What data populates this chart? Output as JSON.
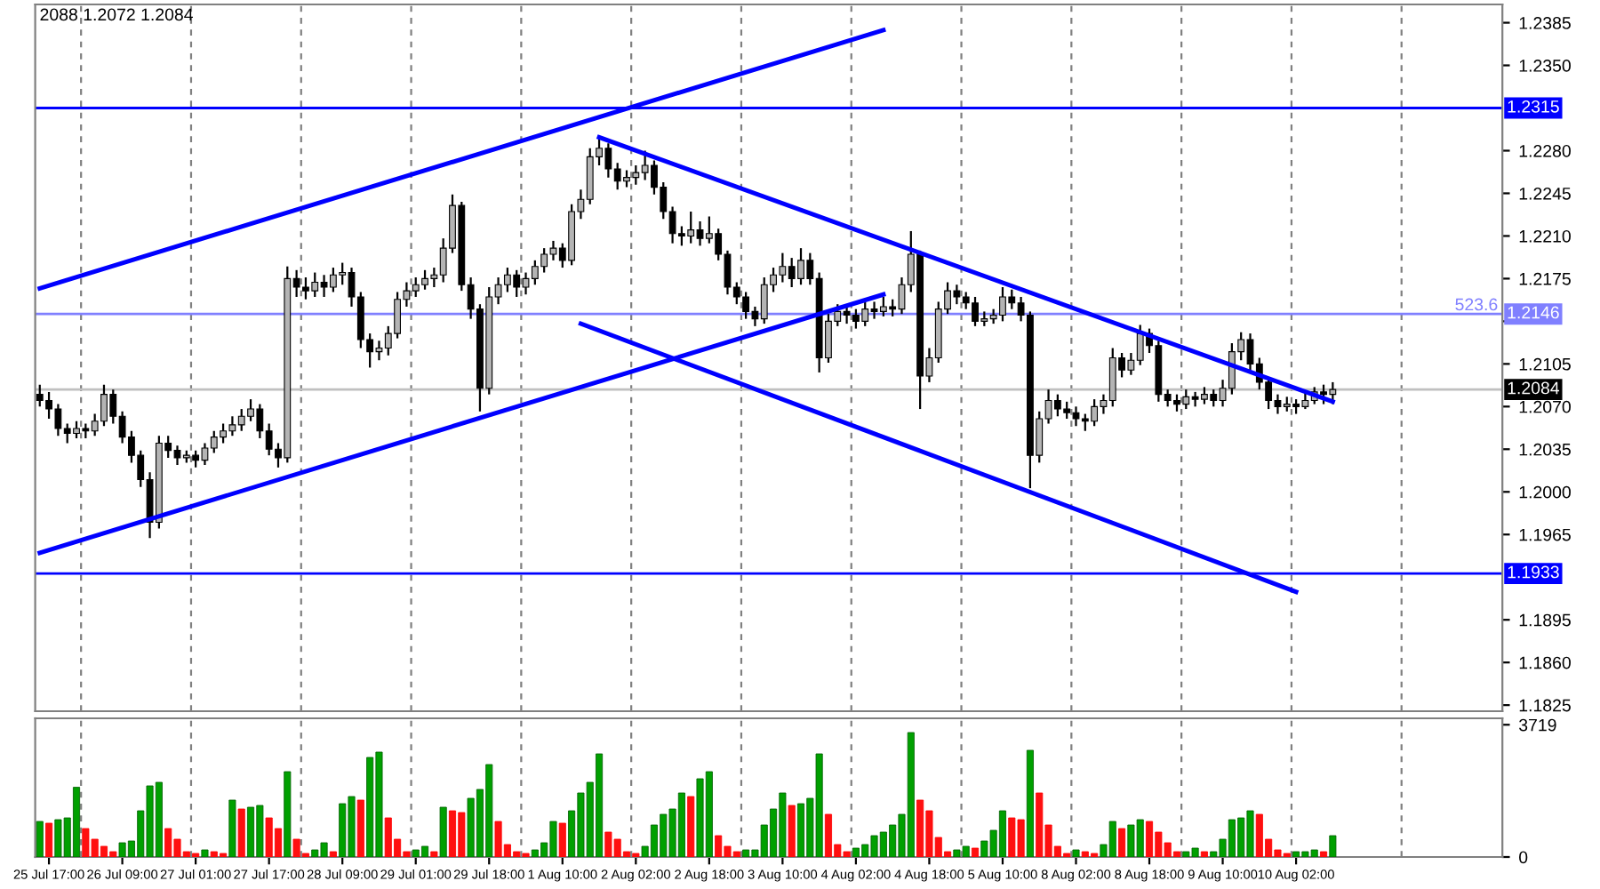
{
  "chart_data": [
    {
      "type": "candlestick",
      "tick_labels": "y",
      "categories": [
        null,
        null,
        null,
        null,
        null,
        null,
        null,
        null,
        null,
        null,
        null,
        null,
        null,
        null,
        null,
        null,
        null,
        null,
        null,
        null,
        null,
        null,
        null,
        null,
        null,
        null,
        null,
        null,
        null,
        null,
        null,
        null,
        null,
        null,
        null,
        null,
        null,
        null,
        null,
        null,
        null,
        null,
        null,
        null,
        null,
        null,
        null,
        null,
        null,
        null,
        null,
        null,
        null,
        null,
        null,
        null,
        null,
        null,
        null,
        null,
        null,
        null,
        null,
        null,
        null,
        null,
        null,
        null,
        null,
        null,
        null,
        null,
        null,
        null,
        null,
        null,
        null,
        null,
        null,
        null,
        null,
        null,
        null,
        null,
        null,
        null,
        null,
        null,
        null,
        null,
        null,
        null,
        null,
        null,
        null,
        null,
        null,
        null,
        null,
        null,
        null,
        null,
        null,
        null,
        null,
        null,
        null,
        null,
        null,
        null,
        null,
        null,
        null,
        null,
        null,
        null,
        null,
        null,
        null,
        null,
        null,
        null,
        null,
        null,
        null,
        null,
        null,
        null,
        null,
        null,
        null,
        null,
        null,
        null,
        null,
        null,
        null,
        null,
        null,
        null,
        null,
        null,
        null,
        null,
        null,
        null,
        null,
        null,
        null,
        null,
        null,
        null,
        null,
        null,
        null,
        null,
        null,
        null,
        null,
        null
      ],
      "ohlc": [
        [
          1.208,
          1.2088,
          1.207,
          1.2075
        ],
        [
          1.2075,
          1.2082,
          1.206,
          1.2068
        ],
        [
          1.2068,
          1.2072,
          1.2046,
          1.2052
        ],
        [
          1.2052,
          1.2056,
          1.204,
          1.2048
        ],
        [
          1.2048,
          1.2058,
          1.2044,
          1.2052
        ],
        [
          1.2052,
          1.2056,
          1.2044,
          1.205
        ],
        [
          1.205,
          1.2064,
          1.2046,
          1.2058
        ],
        [
          1.2058,
          1.2088,
          1.2054,
          1.208
        ],
        [
          1.208,
          1.2084,
          1.2056,
          1.2062
        ],
        [
          1.2062,
          1.2066,
          1.204,
          1.2045
        ],
        [
          1.2045,
          1.205,
          1.2024,
          1.203
        ],
        [
          1.203,
          1.2034,
          1.2004,
          1.201
        ],
        [
          1.201,
          1.2016,
          1.1962,
          1.1975
        ],
        [
          1.1975,
          1.2046,
          1.197,
          1.204
        ],
        [
          1.204,
          1.2046,
          1.2028,
          1.2034
        ],
        [
          1.2034,
          1.2038,
          1.2022,
          1.2028
        ],
        [
          1.2028,
          1.2034,
          1.2024,
          1.203
        ],
        [
          1.203,
          1.2034,
          1.202,
          1.2026
        ],
        [
          1.2026,
          1.204,
          1.2022,
          1.2036
        ],
        [
          1.2036,
          1.205,
          1.2032,
          1.2045
        ],
        [
          1.2045,
          1.2056,
          1.204,
          1.205
        ],
        [
          1.205,
          1.2062,
          1.2046,
          1.2055
        ],
        [
          1.2055,
          1.2068,
          1.205,
          1.2062
        ],
        [
          1.2062,
          1.2076,
          1.2058,
          1.2068
        ],
        [
          1.2068,
          1.2072,
          1.2044,
          1.205
        ],
        [
          1.205,
          1.2056,
          1.203,
          1.2035
        ],
        [
          1.2035,
          1.204,
          1.202,
          1.2028
        ],
        [
          1.2028,
          1.2185,
          1.2024,
          1.2175
        ],
        [
          1.2175,
          1.2182,
          1.216,
          1.2168
        ],
        [
          1.2168,
          1.2176,
          1.2158,
          1.2165
        ],
        [
          1.2165,
          1.218,
          1.216,
          1.2172
        ],
        [
          1.2172,
          1.2178,
          1.216,
          1.2168
        ],
        [
          1.2168,
          1.2184,
          1.2164,
          1.2178
        ],
        [
          1.2178,
          1.2188,
          1.217,
          1.218
        ],
        [
          1.218,
          1.2184,
          1.2152,
          1.216
        ],
        [
          1.216,
          1.2164,
          1.2118,
          1.2125
        ],
        [
          1.2125,
          1.213,
          1.2102,
          1.2115
        ],
        [
          1.2115,
          1.2124,
          1.2108,
          1.2118
        ],
        [
          1.2118,
          1.2136,
          1.2112,
          1.213
        ],
        [
          1.213,
          1.2164,
          1.2126,
          1.2158
        ],
        [
          1.2158,
          1.2172,
          1.2152,
          1.2165
        ],
        [
          1.2165,
          1.2176,
          1.216,
          1.217
        ],
        [
          1.217,
          1.2182,
          1.2166,
          1.2175
        ],
        [
          1.2175,
          1.2184,
          1.2168,
          1.2178
        ],
        [
          1.2178,
          1.2208,
          1.2172,
          1.22
        ],
        [
          1.22,
          1.2244,
          1.2196,
          1.2235
        ],
        [
          1.2235,
          1.2238,
          1.2165,
          1.217
        ],
        [
          1.217,
          1.2176,
          1.2142,
          1.215
        ],
        [
          1.215,
          1.2154,
          1.2066,
          1.2085
        ],
        [
          1.2085,
          1.2168,
          1.208,
          1.216
        ],
        [
          1.216,
          1.2176,
          1.2154,
          1.217
        ],
        [
          1.217,
          1.2184,
          1.2164,
          1.2178
        ],
        [
          1.2178,
          1.2182,
          1.216,
          1.2168
        ],
        [
          1.2168,
          1.218,
          1.2162,
          1.2175
        ],
        [
          1.2175,
          1.219,
          1.217,
          1.2185
        ],
        [
          1.2185,
          1.22,
          1.218,
          1.2195
        ],
        [
          1.2195,
          1.2206,
          1.219,
          1.22
        ],
        [
          1.22,
          1.2204,
          1.2184,
          1.219
        ],
        [
          1.219,
          1.2236,
          1.2186,
          1.223
        ],
        [
          1.223,
          1.2248,
          1.2224,
          1.224
        ],
        [
          1.224,
          1.2282,
          1.2236,
          1.2275
        ],
        [
          1.2275,
          1.2292,
          1.2268,
          1.2282
        ],
        [
          1.2282,
          1.2286,
          1.2258,
          1.2265
        ],
        [
          1.2265,
          1.227,
          1.2248,
          1.2255
        ],
        [
          1.2255,
          1.2264,
          1.225,
          1.2258
        ],
        [
          1.2258,
          1.2268,
          1.2252,
          1.2262
        ],
        [
          1.2262,
          1.228,
          1.2256,
          1.2268
        ],
        [
          1.2268,
          1.2272,
          1.2244,
          1.225
        ],
        [
          1.225,
          1.2254,
          1.2224,
          1.223
        ],
        [
          1.223,
          1.2234,
          1.2204,
          1.2212
        ],
        [
          1.2212,
          1.2218,
          1.2202,
          1.221
        ],
        [
          1.221,
          1.223,
          1.2204,
          1.2215
        ],
        [
          1.2215,
          1.2222,
          1.2202,
          1.2208
        ],
        [
          1.2208,
          1.2226,
          1.2204,
          1.2212
        ],
        [
          1.2212,
          1.2216,
          1.219,
          1.2195
        ],
        [
          1.2195,
          1.2198,
          1.2162,
          1.2168
        ],
        [
          1.2168,
          1.2172,
          1.2154,
          1.216
        ],
        [
          1.216,
          1.2164,
          1.2142,
          1.2148
        ],
        [
          1.2148,
          1.2152,
          1.2136,
          1.2142
        ],
        [
          1.2142,
          1.2176,
          1.2138,
          1.217
        ],
        [
          1.217,
          1.2184,
          1.2164,
          1.2178
        ],
        [
          1.2178,
          1.2196,
          1.2172,
          1.2185
        ],
        [
          1.2185,
          1.2192,
          1.2168,
          1.2175
        ],
        [
          1.2175,
          1.22,
          1.217,
          1.219
        ],
        [
          1.219,
          1.2196,
          1.217,
          1.2175
        ],
        [
          1.2175,
          1.218,
          1.2098,
          1.211
        ],
        [
          1.211,
          1.2146,
          1.2106,
          1.214
        ],
        [
          1.214,
          1.2154,
          1.2136,
          1.2148
        ],
        [
          1.2148,
          1.2152,
          1.2138,
          1.2145
        ],
        [
          1.2145,
          1.215,
          1.2134,
          1.214
        ],
        [
          1.214,
          1.2156,
          1.2136,
          1.215
        ],
        [
          1.215,
          1.2156,
          1.2142,
          1.2148
        ],
        [
          1.2148,
          1.216,
          1.2144,
          1.2152
        ],
        [
          1.2152,
          1.2158,
          1.2144,
          1.215
        ],
        [
          1.215,
          1.2176,
          1.2146,
          1.217
        ],
        [
          1.217,
          1.2214,
          1.2164,
          1.2195
        ],
        [
          1.2195,
          1.2198,
          1.2068,
          1.2095
        ],
        [
          1.2095,
          1.2118,
          1.209,
          1.211
        ],
        [
          1.211,
          1.2156,
          1.2106,
          1.215
        ],
        [
          1.215,
          1.2172,
          1.2146,
          1.2165
        ],
        [
          1.2165,
          1.217,
          1.2154,
          1.216
        ],
        [
          1.216,
          1.2164,
          1.215,
          1.2155
        ],
        [
          1.2155,
          1.216,
          1.2136,
          1.214
        ],
        [
          1.214,
          1.2148,
          1.2136,
          1.2142
        ],
        [
          1.2142,
          1.215,
          1.2138,
          1.2145
        ],
        [
          1.2145,
          1.2168,
          1.214,
          1.216
        ],
        [
          1.216,
          1.2166,
          1.215,
          1.2155
        ],
        [
          1.2155,
          1.216,
          1.214,
          1.2145
        ],
        [
          1.2145,
          1.2148,
          1.2003,
          1.203
        ],
        [
          1.203,
          1.2066,
          1.2024,
          1.206
        ],
        [
          1.206,
          1.2084,
          1.2056,
          1.2075
        ],
        [
          1.2075,
          1.208,
          1.2062,
          1.2068
        ],
        [
          1.2068,
          1.2074,
          1.206,
          1.2065
        ],
        [
          1.2065,
          1.207,
          1.2054,
          1.206
        ],
        [
          1.206,
          1.2064,
          1.205,
          1.2058
        ],
        [
          1.2058,
          1.2076,
          1.2054,
          1.207
        ],
        [
          1.207,
          1.208,
          1.2064,
          1.2075
        ],
        [
          1.2075,
          1.2118,
          1.207,
          1.211
        ],
        [
          1.211,
          1.2114,
          1.2094,
          1.21
        ],
        [
          1.21,
          1.2114,
          1.2096,
          1.2108
        ],
        [
          1.2108,
          1.2137,
          1.2104,
          1.213
        ],
        [
          1.213,
          1.2134,
          1.2114,
          1.212
        ],
        [
          1.212,
          1.2124,
          1.2074,
          1.208
        ],
        [
          1.208,
          1.2084,
          1.207,
          1.2075
        ],
        [
          1.2075,
          1.208,
          1.2066,
          1.2072
        ],
        [
          1.2072,
          1.2084,
          1.2068,
          1.2078
        ],
        [
          1.2078,
          1.2082,
          1.207,
          1.2076
        ],
        [
          1.2076,
          1.2086,
          1.2072,
          1.208
        ],
        [
          1.208,
          1.2084,
          1.207,
          1.2075
        ],
        [
          1.2075,
          1.2092,
          1.207,
          1.2085
        ],
        [
          1.2085,
          1.2122,
          1.208,
          1.2115
        ],
        [
          1.2115,
          1.2131,
          1.2108,
          1.2125
        ],
        [
          1.2125,
          1.213,
          1.21,
          1.2105
        ],
        [
          1.2105,
          1.211,
          1.2084,
          1.209
        ],
        [
          1.209,
          1.2094,
          1.2068,
          1.2075
        ],
        [
          1.2075,
          1.208,
          1.2064,
          1.207
        ],
        [
          1.207,
          1.2078,
          1.2066,
          1.2072
        ],
        [
          1.2072,
          1.2076,
          1.2064,
          1.207
        ],
        [
          1.207,
          1.2082,
          1.2068,
          1.2075
        ],
        [
          1.2075,
          1.2086,
          1.2072,
          1.2082
        ],
        [
          1.2082,
          1.2088,
          1.2072,
          1.208
        ],
        [
          1.208,
          1.209,
          1.2072,
          1.2084
        ],
        null,
        null,
        null,
        null,
        null,
        null,
        null,
        null,
        null,
        null,
        null,
        null,
        null,
        null,
        null,
        null,
        null,
        null
      ],
      "series": [
        {
          "type": "line",
          "color": "#0000ff",
          "values": [
            1.2167,
            null,
            null,
            null,
            null,
            null,
            null,
            null,
            null,
            null,
            null,
            null,
            null,
            null,
            null,
            null,
            null,
            null,
            null,
            null,
            null,
            null,
            null,
            null,
            null,
            null,
            null,
            null,
            null,
            null,
            null,
            null,
            null,
            null,
            null,
            null,
            null,
            null,
            null,
            null,
            null,
            null,
            null,
            null,
            null,
            null,
            null,
            null,
            null,
            null,
            null,
            null,
            null,
            null,
            null,
            null,
            null,
            null,
            null,
            null,
            null,
            null,
            null,
            null,
            null,
            null,
            null,
            null,
            null,
            null,
            null,
            null,
            null,
            null,
            null,
            null,
            null,
            null,
            null,
            null,
            null,
            null,
            null,
            null,
            null,
            null,
            null,
            null,
            null,
            null,
            null,
            null,
            1.2379,
            null,
            null,
            null,
            null,
            null,
            null,
            null,
            null,
            null,
            null,
            null,
            null,
            null,
            null,
            null,
            null,
            null,
            null,
            null,
            null,
            null,
            null,
            null,
            null,
            null,
            null,
            null,
            null,
            null,
            null,
            null,
            null,
            null,
            null,
            null,
            null,
            null,
            null,
            null,
            null,
            null,
            null,
            null,
            null,
            null,
            null,
            null,
            null,
            null,
            null,
            null,
            null,
            null,
            null,
            null,
            null,
            null,
            null,
            null,
            null,
            null,
            null,
            null,
            null,
            null,
            null,
            null
          ]
        },
        {
          "type": "line",
          "color": "#0000ff",
          "values": [
            1.195,
            null,
            null,
            null,
            null,
            null,
            null,
            null,
            null,
            null,
            null,
            null,
            null,
            null,
            null,
            null,
            null,
            null,
            null,
            null,
            null,
            null,
            null,
            null,
            null,
            null,
            null,
            null,
            null,
            null,
            null,
            null,
            null,
            null,
            null,
            null,
            null,
            null,
            null,
            null,
            null,
            null,
            null,
            null,
            null,
            null,
            null,
            null,
            null,
            null,
            null,
            null,
            null,
            null,
            null,
            null,
            null,
            null,
            null,
            null,
            null,
            null,
            null,
            null,
            null,
            null,
            null,
            null,
            null,
            null,
            null,
            null,
            null,
            null,
            null,
            null,
            null,
            null,
            null,
            null,
            null,
            null,
            null,
            null,
            null,
            null,
            null,
            null,
            null,
            null,
            null,
            null,
            1.2162,
            null,
            null,
            null,
            null,
            null,
            null,
            null,
            null,
            null,
            null,
            null,
            null,
            null,
            null,
            null,
            null,
            null,
            null,
            null,
            null,
            null,
            null,
            null,
            null,
            null,
            null,
            null,
            null,
            null,
            null,
            null,
            null,
            null,
            null,
            null,
            null,
            null,
            null,
            null,
            null,
            null,
            null,
            null,
            null,
            null,
            null,
            null,
            null,
            null,
            null,
            null,
            null,
            null,
            null,
            null,
            null,
            null,
            null,
            null,
            null,
            null,
            null,
            null,
            null,
            null,
            null,
            null
          ]
        },
        {
          "type": "line",
          "color": "#0000ff",
          "values": [
            null,
            null,
            null,
            null,
            null,
            null,
            null,
            null,
            null,
            null,
            null,
            null,
            null,
            null,
            null,
            null,
            null,
            null,
            null,
            null,
            null,
            null,
            null,
            null,
            null,
            null,
            null,
            null,
            null,
            null,
            null,
            null,
            null,
            null,
            null,
            null,
            null,
            null,
            null,
            null,
            null,
            null,
            null,
            null,
            null,
            null,
            null,
            null,
            null,
            null,
            null,
            null,
            null,
            null,
            null,
            null,
            null,
            null,
            null,
            null,
            null,
            1.2291,
            null,
            null,
            null,
            null,
            null,
            null,
            null,
            null,
            null,
            null,
            null,
            null,
            null,
            null,
            null,
            null,
            null,
            null,
            null,
            null,
            null,
            null,
            null,
            null,
            null,
            null,
            null,
            null,
            null,
            null,
            null,
            null,
            null,
            null,
            null,
            null,
            null,
            null,
            null,
            null,
            null,
            null,
            null,
            null,
            null,
            null,
            null,
            null,
            null,
            null,
            null,
            null,
            null,
            null,
            null,
            null,
            null,
            null,
            null,
            null,
            null,
            null,
            null,
            null,
            null,
            null,
            null,
            null,
            null,
            null,
            null,
            null,
            null,
            null,
            null,
            null,
            null,
            null,
            null,
            1.2074,
            null,
            null,
            null,
            null,
            null,
            null,
            null,
            null,
            null,
            null,
            null,
            null,
            null,
            null,
            null,
            null,
            null,
            null
          ]
        },
        {
          "type": "line",
          "color": "#0000ff",
          "values": [
            null,
            null,
            null,
            null,
            null,
            null,
            null,
            null,
            null,
            null,
            null,
            null,
            null,
            null,
            null,
            null,
            null,
            null,
            null,
            null,
            null,
            null,
            null,
            null,
            null,
            null,
            null,
            null,
            null,
            null,
            null,
            null,
            null,
            null,
            null,
            null,
            null,
            null,
            null,
            null,
            null,
            null,
            null,
            null,
            null,
            null,
            null,
            null,
            null,
            null,
            null,
            null,
            null,
            null,
            null,
            null,
            null,
            null,
            null,
            1.2138,
            null,
            null,
            null,
            null,
            null,
            null,
            null,
            null,
            null,
            null,
            null,
            null,
            null,
            null,
            null,
            null,
            null,
            null,
            null,
            null,
            null,
            null,
            null,
            null,
            null,
            null,
            null,
            null,
            null,
            null,
            null,
            null,
            null,
            null,
            null,
            null,
            null,
            null,
            null,
            null,
            null,
            null,
            null,
            null,
            null,
            null,
            null,
            null,
            null,
            null,
            null,
            null,
            null,
            null,
            null,
            null,
            null,
            null,
            null,
            null,
            null,
            null,
            null,
            null,
            null,
            null,
            null,
            null,
            null,
            null,
            null,
            null,
            null,
            null,
            null,
            null,
            null,
            1.1918,
            null,
            null,
            null,
            null,
            null,
            null,
            null,
            null,
            null,
            null,
            null,
            null,
            null,
            null,
            null,
            null,
            null,
            null,
            null,
            null,
            null,
            null
          ]
        }
      ],
      "ylim": [
        1.182,
        1.24
      ],
      "yticks": [
        1.1825,
        {
          "value": 1.186,
          "label": "1.1860"
        },
        1.1895,
        1.1965,
        {
          "value": 1.2,
          "label": "1.2000"
        },
        1.2035,
        {
          "value": 1.207,
          "label": "1.2070"
        },
        1.2105,
        {
          "value": 1.214,
          "label": null
        },
        1.2175,
        {
          "value": 1.221,
          "label": "1.2210"
        },
        1.2245,
        {
          "value": 1.228,
          "label": "1.2280"
        },
        {
          "value": 1.235,
          "label": "1.2350"
        },
        1.2385
      ],
      "ref_lines": [
        {
          "axis": "y",
          "value": 1.2315,
          "label": "1.2315",
          "color": "#0000ff"
        },
        {
          "axis": "y",
          "value": 1.2146,
          "label": "1.2146",
          "color": "#8080ff"
        },
        {
          "axis": "y",
          "value": 1.1933,
          "label": "1.1933",
          "color": "#0000ff"
        },
        {
          "axis": "y",
          "value": 1.2084,
          "label": "1.2084",
          "color": "#c0c0c0"
        }
      ],
      "annotations": [
        "2088 1.2072 1.2084",
        {
          "text": "523.6",
          "y": 1.2146
        }
      ]
    },
    {
      "type": "bar",
      "categories": [
        null,
        "25 Jul 17:00",
        null,
        null,
        null,
        null,
        null,
        null,
        null,
        "26 Jul 09:00",
        null,
        null,
        null,
        null,
        null,
        null,
        null,
        "27 Jul 01:00",
        null,
        null,
        null,
        null,
        null,
        null,
        null,
        "27 Jul 17:00",
        null,
        null,
        null,
        null,
        null,
        null,
        null,
        "28 Jul 09:00",
        null,
        null,
        null,
        null,
        null,
        null,
        null,
        "29 Jul 01:00",
        null,
        null,
        null,
        null,
        null,
        null,
        null,
        "29 Jul 18:00",
        null,
        null,
        null,
        null,
        null,
        null,
        null,
        "1 Aug 10:00",
        null,
        null,
        null,
        null,
        null,
        null,
        null,
        "2 Aug 02:00",
        null,
        null,
        null,
        null,
        null,
        null,
        null,
        "2 Aug 18:00",
        null,
        null,
        null,
        null,
        null,
        null,
        null,
        "3 Aug 10:00",
        null,
        null,
        null,
        null,
        null,
        null,
        null,
        "4 Aug 02:00",
        null,
        null,
        null,
        null,
        null,
        null,
        null,
        "4 Aug 18:00",
        null,
        null,
        null,
        null,
        null,
        null,
        null,
        "5 Aug 10:00",
        null,
        null,
        null,
        null,
        null,
        null,
        null,
        "8 Aug 02:00",
        null,
        null,
        null,
        null,
        null,
        null,
        null,
        "8 Aug 18:00",
        null,
        null,
        null,
        null,
        null,
        null,
        null,
        "9 Aug 10:00",
        null,
        null,
        null,
        null,
        null,
        null,
        null,
        "10 Aug 02:00",
        null,
        null,
        null,
        null,
        null,
        null,
        null,
        null,
        null,
        null,
        null,
        null,
        null,
        null,
        null,
        null,
        null,
        null,
        null,
        null,
        null,
        null
      ],
      "values": [
        1000,
        950,
        1050,
        1100,
        1960,
        800,
        500,
        300,
        150,
        400,
        450,
        1300,
        2000,
        2100,
        800,
        500,
        150,
        100,
        200,
        150,
        100,
        1600,
        1350,
        1400,
        1450,
        1100,
        800,
        2400,
        500,
        100,
        200,
        400,
        150,
        1500,
        1700,
        1600,
        2800,
        2950,
        1100,
        500,
        150,
        200,
        300,
        150,
        1400,
        1300,
        1250,
        1650,
        1900,
        2600,
        1000,
        350,
        150,
        100,
        200,
        400,
        1000,
        950,
        1300,
        1800,
        2100,
        2900,
        700,
        500,
        150,
        100,
        300,
        900,
        1200,
        1350,
        1800,
        1700,
        2200,
        2400,
        600,
        300,
        150,
        200,
        200,
        900,
        1350,
        1800,
        1450,
        1500,
        1650,
        2900,
        1200,
        350,
        150,
        250,
        350,
        600,
        700,
        900,
        1200,
        3500,
        1600,
        1300,
        550,
        150,
        200,
        300,
        250,
        450,
        750,
        1300,
        1100,
        1050,
        3000,
        1800,
        900,
        300,
        100,
        200,
        150,
        100,
        350,
        1000,
        800,
        900,
        1050,
        1000,
        700,
        400,
        150,
        150,
        250,
        150,
        150,
        500,
        1050,
        1100,
        1300,
        1200,
        500,
        200,
        100,
        150,
        150,
        200,
        150,
        600,
        null,
        null,
        null,
        null,
        null,
        null,
        null,
        null,
        null,
        null,
        null,
        null,
        null,
        null,
        null,
        null,
        null,
        null
      ],
      "ylim": [
        0,
        3900
      ],
      "yticks": [
        0,
        3719
      ]
    }
  ]
}
